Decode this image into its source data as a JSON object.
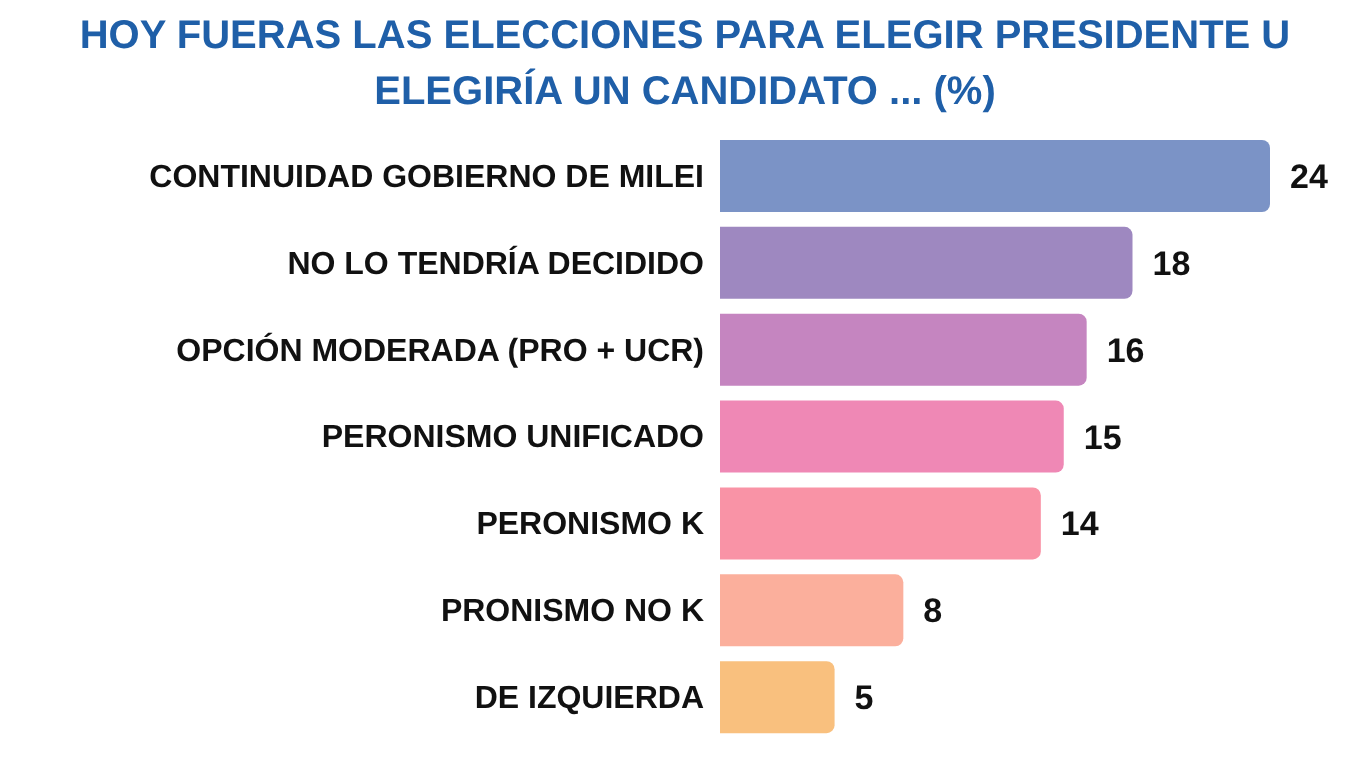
{
  "chart_data": {
    "type": "bar",
    "orientation": "horizontal",
    "title": "HOY FUERAS LAS ELECCIONES PARA ELEGIR PRESIDENTE U ELEGIRÍA UN CANDIDATO ... (%)",
    "categories": [
      "CONTINUIDAD GOBIERNO DE MILEI",
      "NO LO TENDRÍA DECIDIDO",
      "OPCIÓN MODERADA (PRO + UCR)",
      "PERONISMO UNIFICADO",
      "PERONISMO K",
      "PRONISMO NO K",
      "DE IZQUIERDA"
    ],
    "values": [
      24,
      18,
      16,
      15,
      14,
      8,
      5
    ],
    "colors": [
      "#7b93c6",
      "#9e88c0",
      "#c585c0",
      "#ef88b5",
      "#f993a6",
      "#fbaf9c",
      "#f9c07e"
    ],
    "data_labels": true,
    "grid": false,
    "legend": false
  }
}
